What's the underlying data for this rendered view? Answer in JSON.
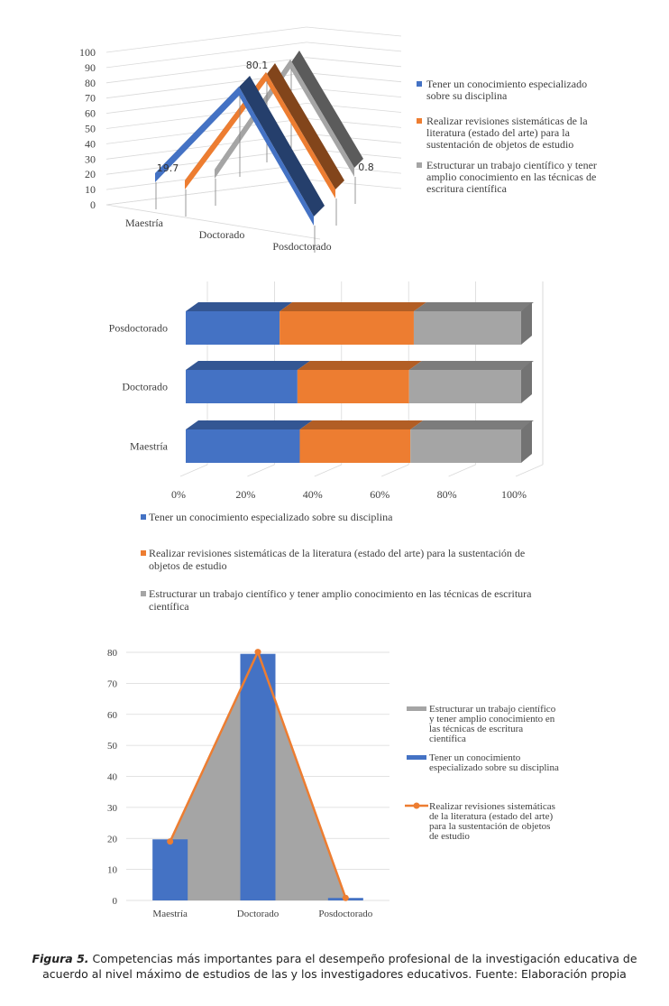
{
  "colors": {
    "blue": "#4472c4",
    "orange": "#ed7d31",
    "gray": "#a5a5a5"
  },
  "chart_data": [
    {
      "type": "line",
      "categories": [
        "Maestría",
        "Doctorado",
        "Posdoctorado"
      ],
      "yticks": [
        "0",
        "10",
        "20",
        "30",
        "40",
        "50",
        "60",
        "70",
        "80",
        "90",
        "100"
      ],
      "ylim": [
        0,
        100
      ],
      "series": [
        {
          "name": "Tener un conocimiento especializado sobre su disciplina",
          "values": [
            19.7,
            79.5,
            0.8
          ]
        },
        {
          "name": "Realizar revisiones sistemáticas de la literatura (estado del arte) para la sustentación de objetos de estudio",
          "values": [
            19,
            80.1,
            0.8
          ]
        },
        {
          "name": "Estructurar un trabajo científico y tener amplio conocimiento en las técnicas de escritura científica",
          "values": [
            19,
            80,
            0.8
          ]
        }
      ],
      "data_labels": {
        "first": "19.7",
        "peak": "80.1",
        "last": "0.8"
      },
      "legend_lines": [
        [
          "Tener un conocimiento especializado",
          "sobre su disciplina"
        ],
        [
          "Realizar revisiones sistemáticas de la",
          "literatura (estado del arte) para la",
          "sustentación de objetos de estudio"
        ],
        [
          "Estructurar un trabajo científico y tener",
          "amplio conocimiento en las técnicas de",
          "escritura científica"
        ]
      ]
    },
    {
      "type": "bar",
      "orientation": "horizontal-stacked-100",
      "categories": [
        "Posdoctorado",
        "Doctorado",
        "Maestría"
      ],
      "xticks": [
        "0%",
        "20%",
        "40%",
        "60%",
        "80%",
        "100%"
      ],
      "series": [
        {
          "name": "Tener un conocimiento especializado sobre su disciplina",
          "values": [
            28,
            33.3,
            34
          ]
        },
        {
          "name": "Realizar revisiones sistemáticas de la literatura (estado del arte) para la sustentación de objetos de estudio",
          "values": [
            40,
            33.3,
            33
          ]
        },
        {
          "name": "Estructurar un trabajo científico y tener amplio conocimiento en las técnicas de escritura científica",
          "values": [
            32,
            33.4,
            33
          ]
        }
      ],
      "legend_lines": [
        [
          "Tener un conocimiento especializado sobre su disciplina"
        ],
        [
          "Realizar revisiones sistemáticas de la literatura (estado del arte) para la sustentación de",
          "objetos de estudio"
        ],
        [
          "Estructurar un trabajo científico y tener amplio conocimiento en las técnicas de escritura",
          "científica"
        ]
      ]
    },
    {
      "type": "combo",
      "categories": [
        "Maestría",
        "Doctorado",
        "Posdoctorado"
      ],
      "yticks": [
        "0",
        "10",
        "20",
        "30",
        "40",
        "50",
        "60",
        "70",
        "80"
      ],
      "ylim": [
        0,
        80
      ],
      "series": [
        {
          "name": "Estructurar un trabajo científico y tener amplio conocimiento en las técnicas de escritura científica",
          "kind": "area",
          "values": [
            19,
            80,
            0.8
          ]
        },
        {
          "name": "Tener un conocimiento especializado sobre su disciplina",
          "kind": "bar",
          "values": [
            19.7,
            79.5,
            0.8
          ]
        },
        {
          "name": "Realizar revisiones sistemáticas de la literatura (estado del arte) para la sustentación de objetos de estudio",
          "kind": "line",
          "values": [
            19,
            80.1,
            0.8
          ]
        }
      ],
      "legend_lines": [
        [
          "Estructurar un trabajo científico",
          "y tener amplio conocimiento en",
          "las técnicas de escritura",
          "científica"
        ],
        [
          "Tener un conocimiento",
          "especializado sobre su disciplina"
        ],
        [
          "Realizar revisiones sistemáticas",
          "de la literatura (estado del arte)",
          "para la sustentación de objetos",
          "de estudio"
        ]
      ]
    }
  ],
  "caption": {
    "figure_label": "Figura 5.",
    "text": "Competencias más importantes para el desempeño profesional de la investigación educativa de acuerdo al nivel máximo de estudios de las y los investigadores educativos. Fuente: Elaboración propia"
  }
}
